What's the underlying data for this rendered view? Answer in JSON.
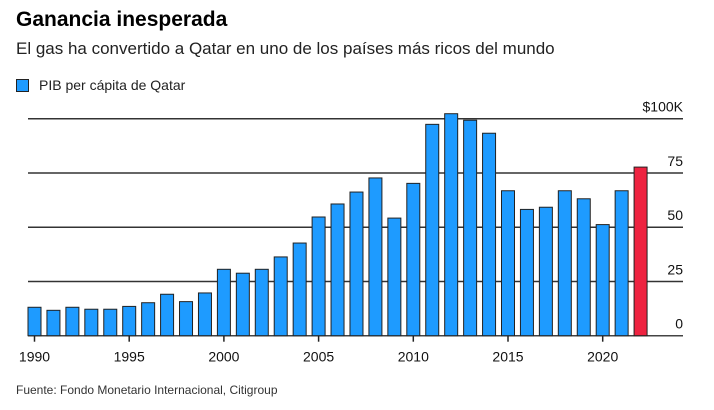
{
  "chart_data": {
    "type": "bar",
    "title": "Ganancia inesperada",
    "subtitle": "El gas ha convertido a Qatar en uno de los países más ricos del mundo",
    "legend": "PIB per cápita de Qatar",
    "source": "Fuente: Fondo Monetario Internacional, Citigroup",
    "xlabel": "",
    "ylabel": "",
    "ylim": [
      0,
      100
    ],
    "yticks": [
      0,
      25,
      50,
      75,
      100
    ],
    "ytick_labels": [
      "0",
      "25",
      "50",
      "75",
      "$100K"
    ],
    "xtick_labels": [
      "1990",
      "1995",
      "2000",
      "2005",
      "2010",
      "2015",
      "2020"
    ],
    "categories": [
      1990,
      1991,
      1992,
      1993,
      1994,
      1995,
      1996,
      1997,
      1998,
      1999,
      2000,
      2001,
      2002,
      2003,
      2004,
      2005,
      2006,
      2007,
      2008,
      2009,
      2010,
      2011,
      2012,
      2013,
      2014,
      2015,
      2016,
      2017,
      2018,
      2019,
      2020,
      2021,
      2022
    ],
    "values": [
      13.1,
      11.7,
      13.1,
      12.2,
      12.2,
      13.5,
      15.2,
      19.1,
      15.7,
      19.7,
      30.6,
      28.8,
      30.6,
      36.3,
      42.7,
      54.7,
      60.7,
      66.2,
      72.7,
      54.2,
      70.2,
      97.4,
      102.3,
      99.3,
      93.3,
      66.8,
      58.2,
      59.2,
      66.8,
      63.1,
      51.2,
      66.8,
      77.7
    ],
    "colors": {
      "default": "#1e9bff",
      "highlight": "#ee2340"
    },
    "highlight_category": 2022,
    "grid": true,
    "legend_position": "top-left"
  }
}
